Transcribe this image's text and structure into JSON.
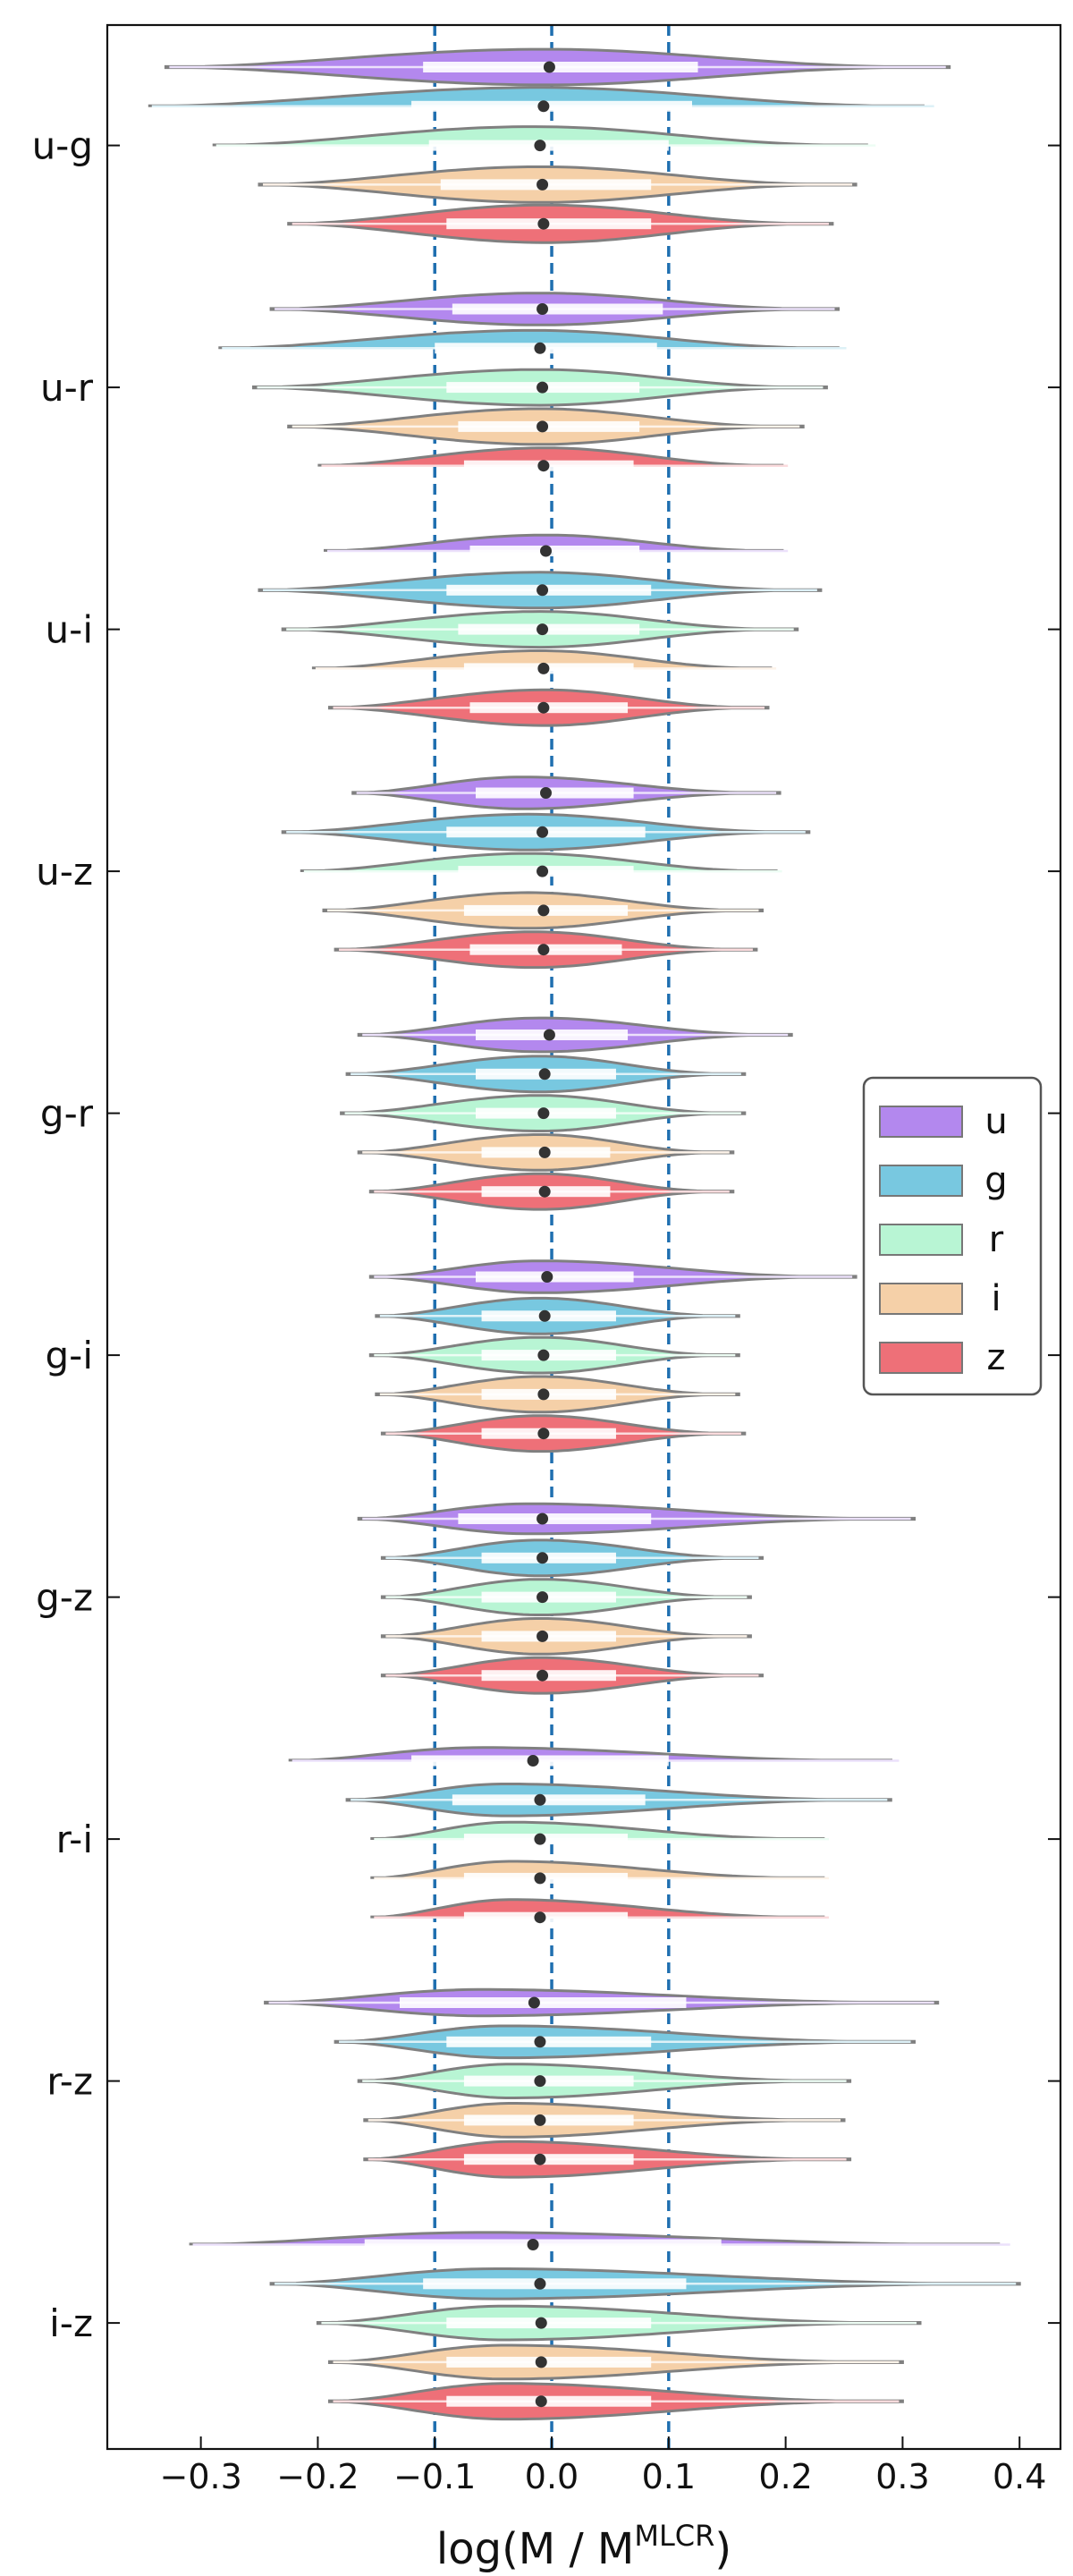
{
  "chart_data": {
    "type": "violin",
    "orientation": "horizontal",
    "xlabel_base": "log(M / M",
    "xlabel_sup": "MLCR",
    "xlabel_close": ")",
    "xlim": [
      -0.38,
      0.435
    ],
    "xticks": [
      -0.3,
      -0.2,
      -0.1,
      0.0,
      0.1,
      0.2,
      0.3,
      0.4
    ],
    "xtick_labels": [
      "−0.3",
      "−0.2",
      "−0.1",
      "0.0",
      "0.1",
      "0.2",
      "0.3",
      "0.4"
    ],
    "reference_lines": [
      -0.1,
      0.0,
      0.1
    ],
    "reference_line_color": "#1f6fb0",
    "legend_position": "right",
    "series": [
      {
        "name": "u",
        "color": "#b388ee"
      },
      {
        "name": "g",
        "color": "#78c8e0"
      },
      {
        "name": "r",
        "color": "#b8f5d4"
      },
      {
        "name": "i",
        "color": "#f5d0a8"
      },
      {
        "name": "z",
        "color": "#ee7078"
      }
    ],
    "groups": [
      {
        "label": "u-g",
        "violins": [
          {
            "min": -0.33,
            "max": 0.34,
            "q1": -0.11,
            "q3": 0.125,
            "median": -0.002,
            "mode": -0.005,
            "width": 0.95
          },
          {
            "min": -0.345,
            "max": 0.33,
            "q1": -0.12,
            "q3": 0.12,
            "median": -0.007,
            "mode": -0.01,
            "width": 1.0
          },
          {
            "min": -0.29,
            "max": 0.28,
            "q1": -0.105,
            "q3": 0.1,
            "median": -0.01,
            "mode": -0.015,
            "width": 1.0
          },
          {
            "min": -0.25,
            "max": 0.26,
            "q1": -0.095,
            "q3": 0.085,
            "median": -0.008,
            "mode": -0.01,
            "width": 0.95
          },
          {
            "min": -0.225,
            "max": 0.24,
            "q1": -0.09,
            "q3": 0.085,
            "median": -0.007,
            "mode": -0.005,
            "width": 1.0
          }
        ]
      },
      {
        "label": "u-r",
        "violins": [
          {
            "min": -0.24,
            "max": 0.245,
            "q1": -0.085,
            "q3": 0.095,
            "median": -0.008,
            "mode": -0.01,
            "width": 0.85
          },
          {
            "min": -0.285,
            "max": 0.255,
            "q1": -0.1,
            "q3": 0.09,
            "median": -0.01,
            "mode": -0.015,
            "width": 0.95
          },
          {
            "min": -0.255,
            "max": 0.235,
            "q1": -0.09,
            "q3": 0.075,
            "median": -0.008,
            "mode": -0.01,
            "width": 0.95
          },
          {
            "min": -0.225,
            "max": 0.215,
            "q1": -0.08,
            "q3": 0.075,
            "median": -0.008,
            "mode": -0.01,
            "width": 0.95
          },
          {
            "min": -0.2,
            "max": 0.205,
            "q1": -0.075,
            "q3": 0.07,
            "median": -0.007,
            "mode": -0.005,
            "width": 0.95
          }
        ]
      },
      {
        "label": "u-i",
        "violins": [
          {
            "min": -0.195,
            "max": 0.205,
            "q1": -0.07,
            "q3": 0.075,
            "median": -0.005,
            "mode": -0.005,
            "width": 0.85
          },
          {
            "min": -0.25,
            "max": 0.23,
            "q1": -0.09,
            "q3": 0.085,
            "median": -0.008,
            "mode": -0.01,
            "width": 0.95
          },
          {
            "min": -0.23,
            "max": 0.21,
            "q1": -0.08,
            "q3": 0.075,
            "median": -0.008,
            "mode": -0.01,
            "width": 0.95
          },
          {
            "min": -0.205,
            "max": 0.195,
            "q1": -0.075,
            "q3": 0.07,
            "median": -0.007,
            "mode": -0.01,
            "width": 0.95
          },
          {
            "min": -0.19,
            "max": 0.185,
            "q1": -0.07,
            "q3": 0.065,
            "median": -0.007,
            "mode": -0.005,
            "width": 0.95
          }
        ]
      },
      {
        "label": "u-z",
        "violins": [
          {
            "min": -0.17,
            "max": 0.195,
            "q1": -0.065,
            "q3": 0.07,
            "median": -0.005,
            "mode": -0.025,
            "width": 0.85
          },
          {
            "min": -0.23,
            "max": 0.22,
            "q1": -0.09,
            "q3": 0.08,
            "median": -0.008,
            "mode": -0.02,
            "width": 0.95
          },
          {
            "min": -0.215,
            "max": 0.2,
            "q1": -0.08,
            "q3": 0.07,
            "median": -0.008,
            "mode": -0.02,
            "width": 0.95
          },
          {
            "min": -0.195,
            "max": 0.18,
            "q1": -0.075,
            "q3": 0.065,
            "median": -0.007,
            "mode": -0.02,
            "width": 0.95
          },
          {
            "min": -0.185,
            "max": 0.175,
            "q1": -0.07,
            "q3": 0.06,
            "median": -0.007,
            "mode": -0.015,
            "width": 0.95
          }
        ]
      },
      {
        "label": "g-r",
        "violins": [
          {
            "min": -0.165,
            "max": 0.205,
            "q1": -0.065,
            "q3": 0.065,
            "median": -0.002,
            "mode": -0.01,
            "width": 0.9
          },
          {
            "min": -0.175,
            "max": 0.165,
            "q1": -0.065,
            "q3": 0.055,
            "median": -0.006,
            "mode": -0.01,
            "width": 0.95
          },
          {
            "min": -0.18,
            "max": 0.165,
            "q1": -0.065,
            "q3": 0.055,
            "median": -0.007,
            "mode": -0.01,
            "width": 0.95
          },
          {
            "min": -0.165,
            "max": 0.155,
            "q1": -0.06,
            "q3": 0.05,
            "median": -0.006,
            "mode": -0.01,
            "width": 0.95
          },
          {
            "min": -0.155,
            "max": 0.155,
            "q1": -0.06,
            "q3": 0.05,
            "median": -0.006,
            "mode": -0.01,
            "width": 0.95
          }
        ]
      },
      {
        "label": "g-i",
        "violins": [
          {
            "min": -0.155,
            "max": 0.26,
            "q1": -0.065,
            "q3": 0.07,
            "median": -0.004,
            "mode": -0.01,
            "width": 0.85
          },
          {
            "min": -0.15,
            "max": 0.16,
            "q1": -0.06,
            "q3": 0.055,
            "median": -0.006,
            "mode": -0.01,
            "width": 0.95
          },
          {
            "min": -0.155,
            "max": 0.16,
            "q1": -0.06,
            "q3": 0.055,
            "median": -0.007,
            "mode": -0.01,
            "width": 0.95
          },
          {
            "min": -0.15,
            "max": 0.16,
            "q1": -0.06,
            "q3": 0.055,
            "median": -0.007,
            "mode": -0.01,
            "width": 0.95
          },
          {
            "min": -0.145,
            "max": 0.165,
            "q1": -0.06,
            "q3": 0.055,
            "median": -0.007,
            "mode": -0.01,
            "width": 0.95
          }
        ]
      },
      {
        "label": "g-z",
        "violins": [
          {
            "min": -0.165,
            "max": 0.31,
            "q1": -0.08,
            "q3": 0.085,
            "median": -0.008,
            "mode": -0.02,
            "width": 0.8
          },
          {
            "min": -0.145,
            "max": 0.18,
            "q1": -0.06,
            "q3": 0.055,
            "median": -0.008,
            "mode": -0.01,
            "width": 0.95
          },
          {
            "min": -0.145,
            "max": 0.17,
            "q1": -0.06,
            "q3": 0.055,
            "median": -0.008,
            "mode": -0.01,
            "width": 0.95
          },
          {
            "min": -0.145,
            "max": 0.17,
            "q1": -0.06,
            "q3": 0.055,
            "median": -0.008,
            "mode": -0.01,
            "width": 0.95
          },
          {
            "min": -0.145,
            "max": 0.18,
            "q1": -0.06,
            "q3": 0.055,
            "median": -0.008,
            "mode": -0.01,
            "width": 0.95
          }
        ]
      },
      {
        "label": "r-i",
        "violins": [
          {
            "min": -0.225,
            "max": 0.3,
            "q1": -0.12,
            "q3": 0.1,
            "median": -0.016,
            "mode": -0.06,
            "width": 0.7
          },
          {
            "min": -0.175,
            "max": 0.29,
            "q1": -0.085,
            "q3": 0.08,
            "median": -0.01,
            "mode": -0.04,
            "width": 0.85
          },
          {
            "min": -0.155,
            "max": 0.24,
            "q1": -0.075,
            "q3": 0.065,
            "median": -0.01,
            "mode": -0.035,
            "width": 0.9
          },
          {
            "min": -0.155,
            "max": 0.24,
            "q1": -0.075,
            "q3": 0.065,
            "median": -0.01,
            "mode": -0.035,
            "width": 0.9
          },
          {
            "min": -0.155,
            "max": 0.24,
            "q1": -0.075,
            "q3": 0.065,
            "median": -0.01,
            "mode": -0.035,
            "width": 0.95
          }
        ]
      },
      {
        "label": "r-z",
        "violins": [
          {
            "min": -0.245,
            "max": 0.33,
            "q1": -0.13,
            "q3": 0.115,
            "median": -0.015,
            "mode": -0.06,
            "width": 0.7
          },
          {
            "min": -0.185,
            "max": 0.31,
            "q1": -0.09,
            "q3": 0.085,
            "median": -0.01,
            "mode": -0.04,
            "width": 0.85
          },
          {
            "min": -0.165,
            "max": 0.255,
            "q1": -0.075,
            "q3": 0.07,
            "median": -0.01,
            "mode": -0.035,
            "width": 0.9
          },
          {
            "min": -0.16,
            "max": 0.25,
            "q1": -0.075,
            "q3": 0.07,
            "median": -0.01,
            "mode": -0.035,
            "width": 0.9
          },
          {
            "min": -0.16,
            "max": 0.255,
            "q1": -0.075,
            "q3": 0.07,
            "median": -0.01,
            "mode": -0.035,
            "width": 0.95
          }
        ]
      },
      {
        "label": "i-z",
        "violins": [
          {
            "min": -0.31,
            "max": 0.395,
            "q1": -0.16,
            "q3": 0.145,
            "median": -0.016,
            "mode": -0.06,
            "width": 0.65
          },
          {
            "min": -0.24,
            "max": 0.4,
            "q1": -0.11,
            "q3": 0.115,
            "median": -0.01,
            "mode": -0.05,
            "width": 0.8
          },
          {
            "min": -0.2,
            "max": 0.315,
            "q1": -0.09,
            "q3": 0.085,
            "median": -0.009,
            "mode": -0.04,
            "width": 0.9
          },
          {
            "min": -0.19,
            "max": 0.3,
            "q1": -0.09,
            "q3": 0.085,
            "median": -0.009,
            "mode": -0.04,
            "width": 0.9
          },
          {
            "min": -0.19,
            "max": 0.3,
            "q1": -0.09,
            "q3": 0.085,
            "median": -0.009,
            "mode": -0.04,
            "width": 0.95
          }
        ]
      }
    ]
  }
}
